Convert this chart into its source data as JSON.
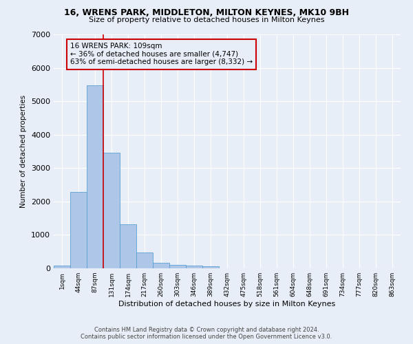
{
  "title": "16, WRENS PARK, MIDDLETON, MILTON KEYNES, MK10 9BH",
  "subtitle": "Size of property relative to detached houses in Milton Keynes",
  "xlabel": "Distribution of detached houses by size in Milton Keynes",
  "ylabel": "Number of detached properties",
  "footer1": "Contains HM Land Registry data © Crown copyright and database right 2024.",
  "footer2": "Contains public sector information licensed under the Open Government Licence v3.0.",
  "annotation_line1": "16 WRENS PARK: 109sqm",
  "annotation_line2": "← 36% of detached houses are smaller (4,747)",
  "annotation_line3": "63% of semi-detached houses are larger (8,332) →",
  "bar_categories": [
    "1sqm",
    "44sqm",
    "87sqm",
    "131sqm",
    "174sqm",
    "217sqm",
    "260sqm",
    "303sqm",
    "346sqm",
    "389sqm",
    "432sqm",
    "475sqm",
    "518sqm",
    "561sqm",
    "604sqm",
    "648sqm",
    "691sqm",
    "734sqm",
    "777sqm",
    "820sqm",
    "863sqm"
  ],
  "bar_values": [
    80,
    2280,
    5480,
    3450,
    1310,
    470,
    155,
    110,
    90,
    60,
    0,
    0,
    0,
    0,
    0,
    0,
    0,
    0,
    0,
    0,
    0
  ],
  "bar_color": "#aec6e8",
  "bar_edge_color": "#5a9fd4",
  "vline_color": "#cc0000",
  "vline_x": 2.5,
  "annotation_box_color": "#cc0000",
  "background_color": "#e8eef7",
  "ylim": [
    0,
    7000
  ],
  "yticks": [
    0,
    1000,
    2000,
    3000,
    4000,
    5000,
    6000,
    7000
  ]
}
